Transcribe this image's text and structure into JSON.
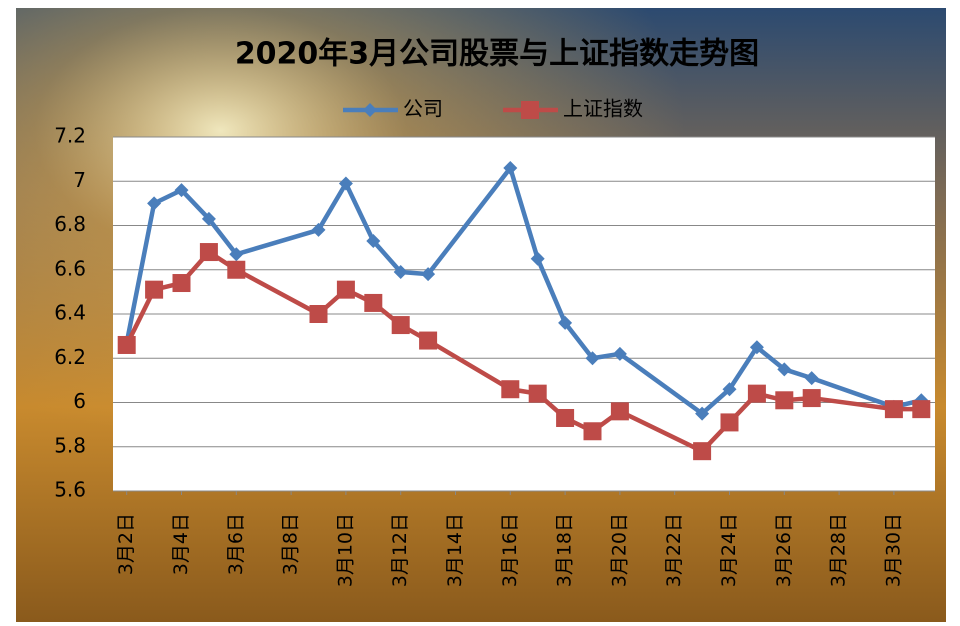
{
  "chart_data": {
    "type": "line",
    "title": "2020年3月公司股票与上证指数走势图",
    "x": [
      2,
      3,
      4,
      5,
      6,
      9,
      10,
      11,
      12,
      13,
      16,
      17,
      18,
      19,
      20,
      23,
      24,
      25,
      26,
      27,
      30,
      31
    ],
    "series": [
      {
        "name": "公司",
        "color": "#4a7ebb",
        "marker": "diamond",
        "values": [
          6.27,
          6.9,
          6.96,
          6.83,
          6.67,
          6.78,
          6.99,
          6.73,
          6.59,
          6.58,
          7.06,
          6.65,
          6.36,
          6.2,
          6.22,
          5.95,
          6.06,
          6.25,
          6.15,
          6.11,
          5.98,
          6.01
        ]
      },
      {
        "name": "上证指数",
        "color": "#be4b48",
        "marker": "square",
        "values": [
          6.26,
          6.51,
          6.54,
          6.68,
          6.6,
          6.4,
          6.51,
          6.45,
          6.35,
          6.28,
          6.06,
          6.04,
          5.93,
          5.87,
          5.96,
          5.78,
          5.91,
          6.04,
          6.01,
          6.02,
          5.97,
          5.97
        ]
      }
    ],
    "xlim": [
      1.5,
      31.5
    ],
    "xticks": [
      {
        "value": 2,
        "label": "3月2日"
      },
      {
        "value": 4,
        "label": "3月4日"
      },
      {
        "value": 6,
        "label": "3月6日"
      },
      {
        "value": 8,
        "label": "3月8日"
      },
      {
        "value": 10,
        "label": "3月10日"
      },
      {
        "value": 12,
        "label": "3月12日"
      },
      {
        "value": 14,
        "label": "3月14日"
      },
      {
        "value": 16,
        "label": "3月16日"
      },
      {
        "value": 18,
        "label": "3月18日"
      },
      {
        "value": 20,
        "label": "3月20日"
      },
      {
        "value": 22,
        "label": "3月22日"
      },
      {
        "value": 24,
        "label": "3月24日"
      },
      {
        "value": 26,
        "label": "3月26日"
      },
      {
        "value": 28,
        "label": "3月28日"
      },
      {
        "value": 30,
        "label": "3月30日"
      }
    ],
    "ylim": [
      5.6,
      7.2
    ],
    "yticks": [
      5.6,
      5.8,
      6,
      6.2,
      6.4,
      6.6,
      6.8,
      7,
      7.2
    ],
    "grid": true,
    "legend": "top"
  }
}
